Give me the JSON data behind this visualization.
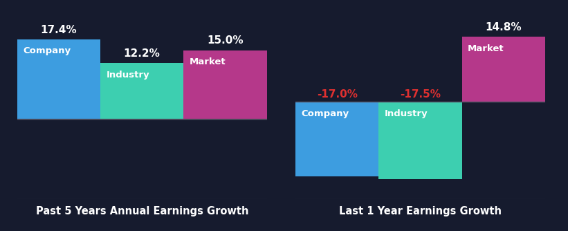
{
  "background_color": "#161b2e",
  "left_chart": {
    "title": "Past 5 Years Annual Earnings Growth",
    "bars": [
      {
        "label": "Company",
        "value": 17.4,
        "color": "#3d9de0"
      },
      {
        "label": "Industry",
        "value": 12.2,
        "color": "#3dcfb0"
      },
      {
        "label": "Market",
        "value": 15.0,
        "color": "#b5388a"
      }
    ],
    "ylim": [
      -17.5,
      22.0
    ]
  },
  "right_chart": {
    "title": "Last 1 Year Earnings Growth",
    "bars": [
      {
        "label": "Company",
        "value": -17.0,
        "color": "#3d9de0"
      },
      {
        "label": "Industry",
        "value": -17.5,
        "color": "#3dcfb0"
      },
      {
        "label": "Market",
        "value": 14.8,
        "color": "#b5388a"
      }
    ],
    "ylim": [
      -22.0,
      19.0
    ]
  },
  "positive_value_color": "#ffffff",
  "negative_value_color": "#e03030",
  "bar_label_color": "#ffffff",
  "title_color": "#ffffff",
  "axis_line_color": "#555566",
  "title_fontsize": 10.5,
  "value_fontsize": 11,
  "bar_label_fontsize": 9.5
}
